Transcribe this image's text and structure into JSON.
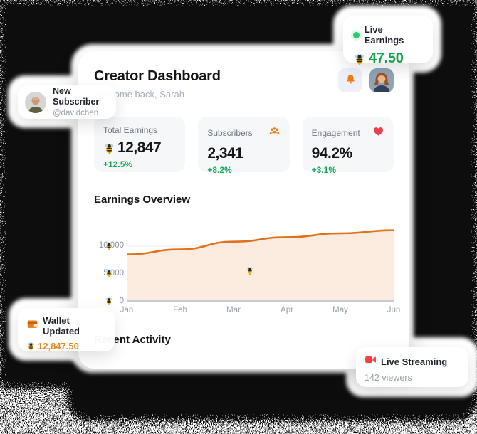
{
  "header": {
    "title": "Creator Dashboard",
    "subtitle": "Welcome back, Sarah",
    "bell_icon": "bell-icon",
    "avatar": "sarah-avatar"
  },
  "stats": [
    {
      "label": "Total Earnings",
      "value": "12,847",
      "change": "+12.5%",
      "icon": "bee-icon"
    },
    {
      "label": "Subscribers",
      "value": "2,341",
      "change": "+8.2%",
      "icon": "people-icon"
    },
    {
      "label": "Engagement",
      "value": "94.2%",
      "change": "+3.1%",
      "icon": "heart-icon"
    }
  ],
  "sections": {
    "earnings": "Earnings Overview",
    "activity": "Recent Activity"
  },
  "chart_data": {
    "type": "area",
    "title": "Earnings Overview",
    "x_labels": [
      "Jan",
      "Feb",
      "Mar",
      "Apr",
      "May",
      "Jun"
    ],
    "values": [
      8500,
      9400,
      10800,
      11600,
      12300,
      12847
    ],
    "y_ticks": [
      {
        "value": 0,
        "label": "0"
      },
      {
        "value": 5000,
        "label": "5,000"
      },
      {
        "value": 10000,
        "label": "10,000"
      }
    ],
    "ylim": [
      0,
      15500
    ],
    "grid": "horizontal",
    "legend": false,
    "line_color": "#e0701a",
    "fill_color": "#fcecdf",
    "bee_marker": {
      "x_index": 2.3,
      "y_value": 5600
    }
  },
  "notifications": {
    "live_earnings": {
      "title": "Live Earnings",
      "amount": "47.50"
    },
    "new_subscriber": {
      "title": "New Subscriber",
      "handle": "@davidchen"
    },
    "wallet": {
      "title": "Wallet Updated",
      "amount": "12,847.50"
    },
    "live_streaming": {
      "title": "Live Streaming",
      "viewers": "142 viewers"
    }
  },
  "colors": {
    "accent_orange": "#e97a14",
    "green": "#17a34a",
    "live_dot": "#2ecc71",
    "red": "#ee4444",
    "backdrop": "#0a0a0a"
  }
}
